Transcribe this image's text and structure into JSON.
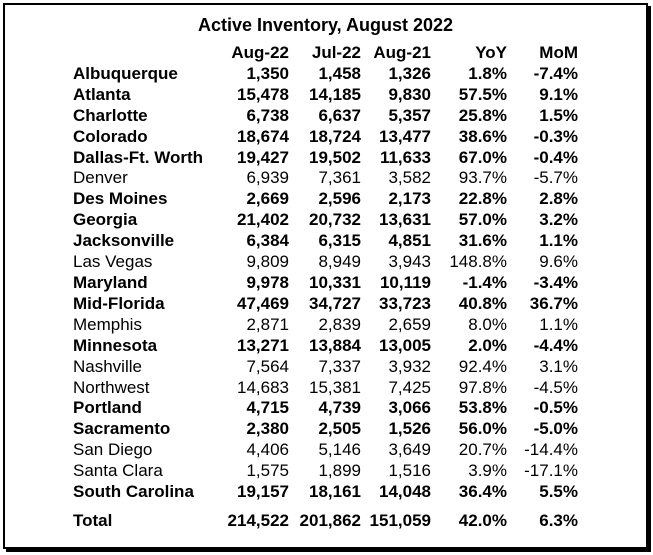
{
  "title": "Active Inventory, August 2022",
  "headers": {
    "name": "",
    "aug22": "Aug-22",
    "jul22": "Jul-22",
    "aug21": "Aug-21",
    "yoy": "YoY",
    "mom": "MoM"
  },
  "rows": [
    {
      "name": "Albuquerque",
      "aug22": "1,350",
      "jul22": "1,458",
      "aug21": "1,326",
      "yoy": "1.8%",
      "mom": "-7.4%",
      "bold": true
    },
    {
      "name": "Atlanta",
      "aug22": "15,478",
      "jul22": "14,185",
      "aug21": "9,830",
      "yoy": "57.5%",
      "mom": "9.1%",
      "bold": true
    },
    {
      "name": "Charlotte",
      "aug22": "6,738",
      "jul22": "6,637",
      "aug21": "5,357",
      "yoy": "25.8%",
      "mom": "1.5%",
      "bold": true
    },
    {
      "name": "Colorado",
      "aug22": "18,674",
      "jul22": "18,724",
      "aug21": "13,477",
      "yoy": "38.6%",
      "mom": "-0.3%",
      "bold": true
    },
    {
      "name": "Dallas-Ft. Worth",
      "aug22": "19,427",
      "jul22": "19,502",
      "aug21": "11,633",
      "yoy": "67.0%",
      "mom": "-0.4%",
      "bold": true
    },
    {
      "name": "Denver",
      "aug22": "6,939",
      "jul22": "7,361",
      "aug21": "3,582",
      "yoy": "93.7%",
      "mom": "-5.7%",
      "bold": false
    },
    {
      "name": "Des Moines",
      "aug22": "2,669",
      "jul22": "2,596",
      "aug21": "2,173",
      "yoy": "22.8%",
      "mom": "2.8%",
      "bold": true
    },
    {
      "name": "Georgia",
      "aug22": "21,402",
      "jul22": "20,732",
      "aug21": "13,631",
      "yoy": "57.0%",
      "mom": "3.2%",
      "bold": true
    },
    {
      "name": "Jacksonville",
      "aug22": "6,384",
      "jul22": "6,315",
      "aug21": "4,851",
      "yoy": "31.6%",
      "mom": "1.1%",
      "bold": true
    },
    {
      "name": "Las Vegas",
      "aug22": "9,809",
      "jul22": "8,949",
      "aug21": "3,943",
      "yoy": "148.8%",
      "mom": "9.6%",
      "bold": false
    },
    {
      "name": "Maryland",
      "aug22": "9,978",
      "jul22": "10,331",
      "aug21": "10,119",
      "yoy": "-1.4%",
      "mom": "-3.4%",
      "bold": true
    },
    {
      "name": "Mid-Florida",
      "aug22": "47,469",
      "jul22": "34,727",
      "aug21": "33,723",
      "yoy": "40.8%",
      "mom": "36.7%",
      "bold": true
    },
    {
      "name": "Memphis",
      "aug22": "2,871",
      "jul22": "2,839",
      "aug21": "2,659",
      "yoy": "8.0%",
      "mom": "1.1%",
      "bold": false
    },
    {
      "name": "Minnesota",
      "aug22": "13,271",
      "jul22": "13,884",
      "aug21": "13,005",
      "yoy": "2.0%",
      "mom": "-4.4%",
      "bold": true
    },
    {
      "name": "Nashville",
      "aug22": "7,564",
      "jul22": "7,337",
      "aug21": "3,932",
      "yoy": "92.4%",
      "mom": "3.1%",
      "bold": false
    },
    {
      "name": "Northwest",
      "aug22": "14,683",
      "jul22": "15,381",
      "aug21": "7,425",
      "yoy": "97.8%",
      "mom": "-4.5%",
      "bold": false
    },
    {
      "name": "Portland",
      "aug22": "4,715",
      "jul22": "4,739",
      "aug21": "3,066",
      "yoy": "53.8%",
      "mom": "-0.5%",
      "bold": true
    },
    {
      "name": "Sacramento",
      "aug22": "2,380",
      "jul22": "2,505",
      "aug21": "1,526",
      "yoy": "56.0%",
      "mom": "-5.0%",
      "bold": true
    },
    {
      "name": "San Diego",
      "aug22": "4,406",
      "jul22": "5,146",
      "aug21": "3,649",
      "yoy": "20.7%",
      "mom": "-14.4%",
      "bold": false
    },
    {
      "name": "Santa Clara",
      "aug22": "1,575",
      "jul22": "1,899",
      "aug21": "1,516",
      "yoy": "3.9%",
      "mom": "-17.1%",
      "bold": false
    },
    {
      "name": "South Carolina",
      "aug22": "19,157",
      "jul22": "18,161",
      "aug21": "14,048",
      "yoy": "36.4%",
      "mom": "5.5%",
      "bold": true
    }
  ],
  "total": {
    "name": "Total",
    "aug22": "214,522",
    "jul22": "201,862",
    "aug21": "151,059",
    "yoy": "42.0%",
    "mom": "6.3%"
  }
}
